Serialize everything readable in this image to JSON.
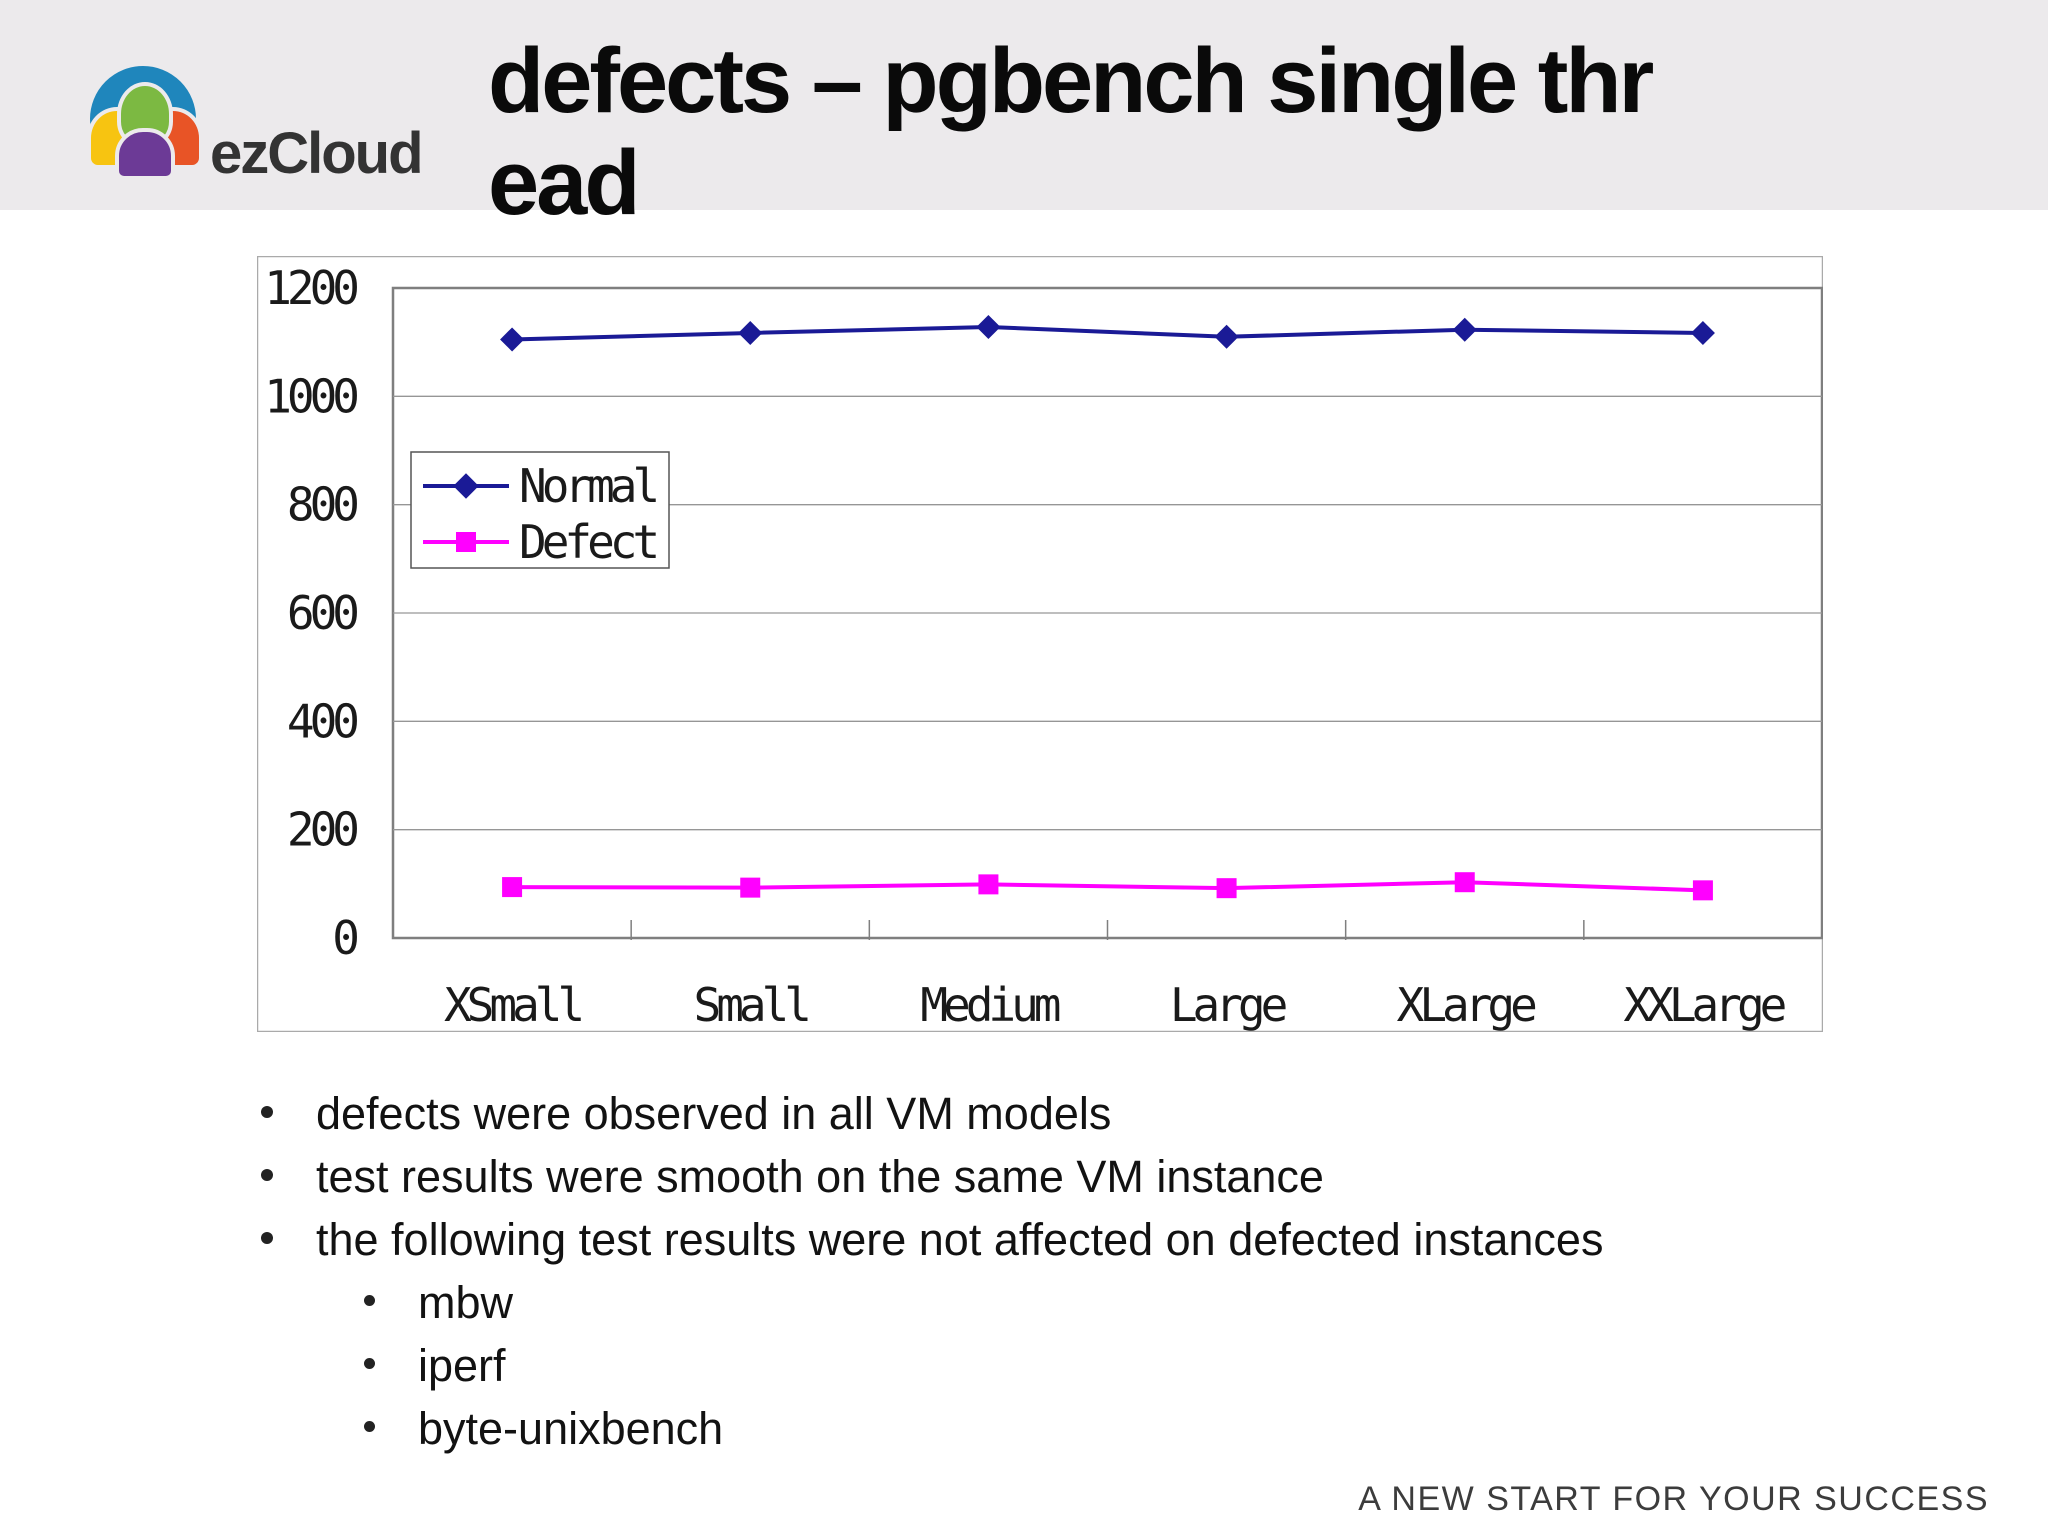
{
  "header": {
    "logo_text": "ezCloud",
    "title_line1": "defects – pgbench single thr",
    "title_line2": "ead"
  },
  "logo_colors": {
    "blue": "#1F86BC",
    "green": "#7CB942",
    "yellow": "#F7C411",
    "orange": "#E85426",
    "purple": "#6C3A96"
  },
  "chart_data": {
    "type": "line",
    "categories": [
      "XSmall",
      "Small",
      "Medium",
      "Large",
      "XLarge",
      "XXLarge"
    ],
    "series": [
      {
        "name": "Normal",
        "color": "#1A1A96",
        "marker": "diamond",
        "values": [
          1105,
          1117,
          1128,
          1110,
          1123,
          1117
        ]
      },
      {
        "name": "Defect",
        "color": "#FF00FF",
        "marker": "square",
        "values": [
          94,
          93,
          99,
          92,
          103,
          88
        ]
      }
    ],
    "title": "",
    "xlabel": "",
    "ylabel": "",
    "ylim": [
      0,
      1200
    ],
    "yticks": [
      0,
      200,
      400,
      600,
      800,
      1000,
      1200
    ],
    "grid": true,
    "legend_position": "upper-left-inside"
  },
  "bullets": {
    "items": [
      {
        "level": 1,
        "text": "defects were observed in all VM models"
      },
      {
        "level": 1,
        "text": "test results were smooth on the same VM instance"
      },
      {
        "level": 1,
        "text": "the following test results were not affected on defected instances"
      },
      {
        "level": 2,
        "text": "mbw"
      },
      {
        "level": 2,
        "text": "iperf"
      },
      {
        "level": 2,
        "text": "byte-unixbench"
      }
    ]
  },
  "footer": {
    "text": "A NEW START FOR YOUR SUCCESS"
  },
  "colors": {
    "header_bg": "#ECEAEC",
    "chart_frame_border": "#AAAAAA",
    "plot_border": "#7F7F7F",
    "gridline": "#969696",
    "text": "#1A1A1A"
  }
}
